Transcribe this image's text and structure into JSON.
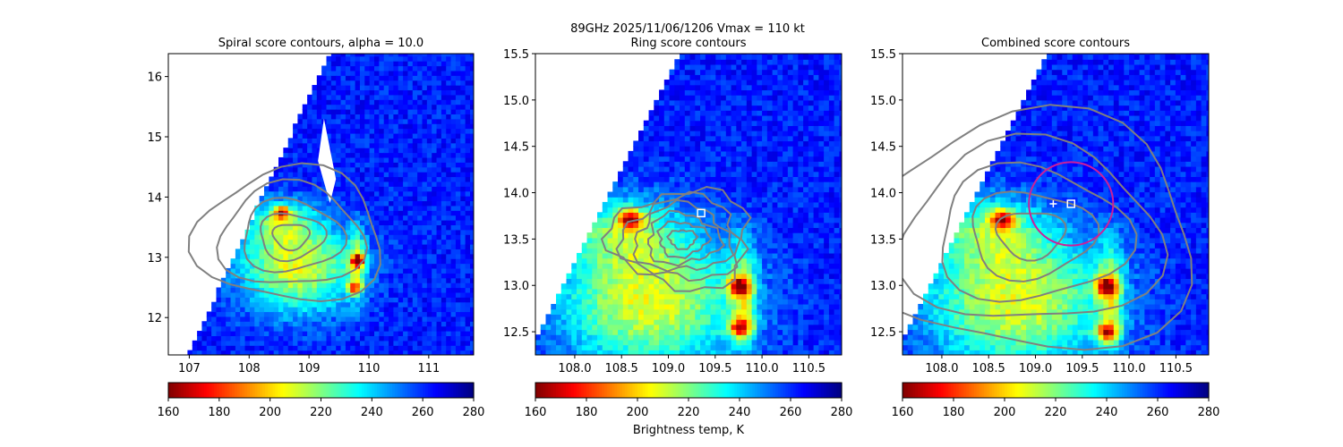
{
  "figure": {
    "suptitle": "89GHz  2025/11/06/1206    Vmax = 110 kt",
    "colorbar_label": "Brightness temp, K"
  },
  "colors": {
    "contour": "#808080",
    "ring": "#cc1f9a",
    "marker": "#ffffff",
    "missing": "#ffffff"
  },
  "colormap": "jet_r",
  "chart_data": [
    {
      "type": "heatmap",
      "title": "Spiral score contours, alpha = 10.0",
      "xlim": [
        106.65,
        111.75
      ],
      "ylim": [
        11.38,
        16.38
      ],
      "x_ticks": [
        "107",
        "108",
        "109",
        "110",
        "111"
      ],
      "y_ticks": [
        "12",
        "13",
        "14",
        "15",
        "16"
      ],
      "overlay": "spiral score contours (grey)",
      "warm_cores": [
        {
          "x": 108.55,
          "y": 13.75,
          "value": 168
        },
        {
          "x": 109.82,
          "y": 12.95,
          "value": 175
        },
        {
          "x": 109.75,
          "y": 12.5,
          "value": 180
        }
      ],
      "colorbar": {
        "vmin": 160,
        "vmax": 280,
        "ticks": [
          "160",
          "180",
          "200",
          "220",
          "240",
          "260",
          "280"
        ]
      }
    },
    {
      "type": "heatmap",
      "title": "Ring score contours",
      "xlim": [
        107.58,
        110.85
      ],
      "ylim": [
        12.25,
        15.5
      ],
      "x_ticks": [
        "108.0",
        "108.5",
        "109.0",
        "109.5",
        "110.0",
        "110.5"
      ],
      "y_ticks": [
        "12.5",
        "13.0",
        "13.5",
        "14.0",
        "14.5",
        "15.0",
        "15.5"
      ],
      "overlay": "ring score contours (grey)",
      "center_marker": {
        "x": 109.35,
        "y": 13.78,
        "shape": "square"
      },
      "warm_cores": [
        {
          "x": 108.6,
          "y": 13.72,
          "value": 168
        },
        {
          "x": 109.77,
          "y": 12.55,
          "value": 175
        },
        {
          "x": 109.75,
          "y": 13.0,
          "value": 180
        }
      ],
      "colorbar": {
        "vmin": 160,
        "vmax": 280,
        "ticks": [
          "160",
          "180",
          "200",
          "220",
          "240",
          "260",
          "280"
        ]
      }
    },
    {
      "type": "heatmap",
      "title": "Combined score contours",
      "xlim": [
        107.58,
        110.85
      ],
      "ylim": [
        12.25,
        15.5
      ],
      "x_ticks": [
        "108.0",
        "108.5",
        "109.0",
        "109.5",
        "110.0",
        "110.5"
      ],
      "y_ticks": [
        "12.5",
        "13.0",
        "13.5",
        "14.0",
        "14.5",
        "15.0",
        "15.5"
      ],
      "overlay": "combined score contours (grey)",
      "center_marker": {
        "x": 109.38,
        "y": 13.88,
        "shape": "square"
      },
      "plus_marker": {
        "x": 109.19,
        "y": 13.88
      },
      "ring": {
        "x": 109.38,
        "y": 13.88,
        "radius_deg": 0.45
      },
      "warm_cores": [
        {
          "x": 108.65,
          "y": 13.72,
          "value": 168
        },
        {
          "x": 109.77,
          "y": 12.5,
          "value": 175
        },
        {
          "x": 109.75,
          "y": 13.0,
          "value": 180
        }
      ],
      "colorbar": {
        "vmin": 160,
        "vmax": 280,
        "ticks": [
          "160",
          "180",
          "200",
          "220",
          "240",
          "260",
          "280"
        ]
      }
    }
  ]
}
